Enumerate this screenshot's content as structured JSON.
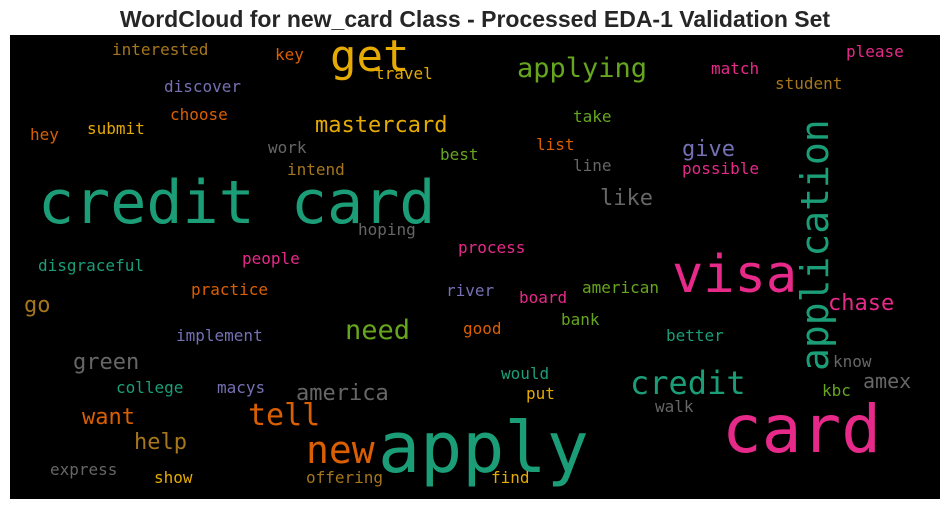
{
  "title": "WordCloud for new_card Class - Processed EDA-1 Validation Set",
  "words": [
    {
      "text": "credit card",
      "color": "#1b9e77"
    },
    {
      "text": "apply",
      "color": "#1b9e77"
    },
    {
      "text": "card",
      "color": "#e7298a"
    },
    {
      "text": "visa",
      "color": "#e7298a"
    },
    {
      "text": "application",
      "color": "#1b9e77"
    },
    {
      "text": "get",
      "color": "#e6ab02"
    },
    {
      "text": "new",
      "color": "#d95f02"
    },
    {
      "text": "credit",
      "color": "#1b9e77"
    },
    {
      "text": "tell",
      "color": "#d95f02"
    },
    {
      "text": "need",
      "color": "#66a61e"
    },
    {
      "text": "applying",
      "color": "#66a61e"
    },
    {
      "text": "mastercard",
      "color": "#e6ab02"
    },
    {
      "text": "america",
      "color": "#666666"
    },
    {
      "text": "green",
      "color": "#666666"
    },
    {
      "text": "want",
      "color": "#d95f02"
    },
    {
      "text": "help",
      "color": "#a6761d"
    },
    {
      "text": "go",
      "color": "#a6761d"
    },
    {
      "text": "like",
      "color": "#666666"
    },
    {
      "text": "give",
      "color": "#7570b3"
    },
    {
      "text": "chase",
      "color": "#e7298a"
    },
    {
      "text": "amex",
      "color": "#666666"
    },
    {
      "text": "interested",
      "color": "#a6761d"
    },
    {
      "text": "key",
      "color": "#d95f02"
    },
    {
      "text": "travel",
      "color": "#e6ab02"
    },
    {
      "text": "discover",
      "color": "#7570b3"
    },
    {
      "text": "choose",
      "color": "#d95f02"
    },
    {
      "text": "hey",
      "color": "#d95f02"
    },
    {
      "text": "submit",
      "color": "#e6ab02"
    },
    {
      "text": "work",
      "color": "#666666"
    },
    {
      "text": "intend",
      "color": "#a6761d"
    },
    {
      "text": "best",
      "color": "#66a61e"
    },
    {
      "text": "take",
      "color": "#66a61e"
    },
    {
      "text": "list",
      "color": "#d95f02"
    },
    {
      "text": "line",
      "color": "#666666"
    },
    {
      "text": "match",
      "color": "#e7298a"
    },
    {
      "text": "please",
      "color": "#e7298a"
    },
    {
      "text": "student",
      "color": "#a6761d"
    },
    {
      "text": "possible",
      "color": "#e7298a"
    },
    {
      "text": "hoping",
      "color": "#666666"
    },
    {
      "text": "process",
      "color": "#e7298a"
    },
    {
      "text": "disgraceful",
      "color": "#1b9e77"
    },
    {
      "text": "people",
      "color": "#e7298a"
    },
    {
      "text": "practice",
      "color": "#d95f02"
    },
    {
      "text": "river",
      "color": "#7570b3"
    },
    {
      "text": "board",
      "color": "#e7298a"
    },
    {
      "text": "american",
      "color": "#66a61e"
    },
    {
      "text": "bank",
      "color": "#66a61e"
    },
    {
      "text": "good",
      "color": "#d95f02"
    },
    {
      "text": "implement",
      "color": "#7570b3"
    },
    {
      "text": "better",
      "color": "#1b9e77"
    },
    {
      "text": "know",
      "color": "#666666"
    },
    {
      "text": "college",
      "color": "#1b9e77"
    },
    {
      "text": "macys",
      "color": "#7570b3"
    },
    {
      "text": "would",
      "color": "#1b9e77"
    },
    {
      "text": "put",
      "color": "#e6ab02"
    },
    {
      "text": "kbc",
      "color": "#66a61e"
    },
    {
      "text": "walk",
      "color": "#666666"
    },
    {
      "text": "express",
      "color": "#666666"
    },
    {
      "text": "show",
      "color": "#e6ab02"
    },
    {
      "text": "offering",
      "color": "#a6761d"
    },
    {
      "text": "find",
      "color": "#e6ab02"
    }
  ]
}
